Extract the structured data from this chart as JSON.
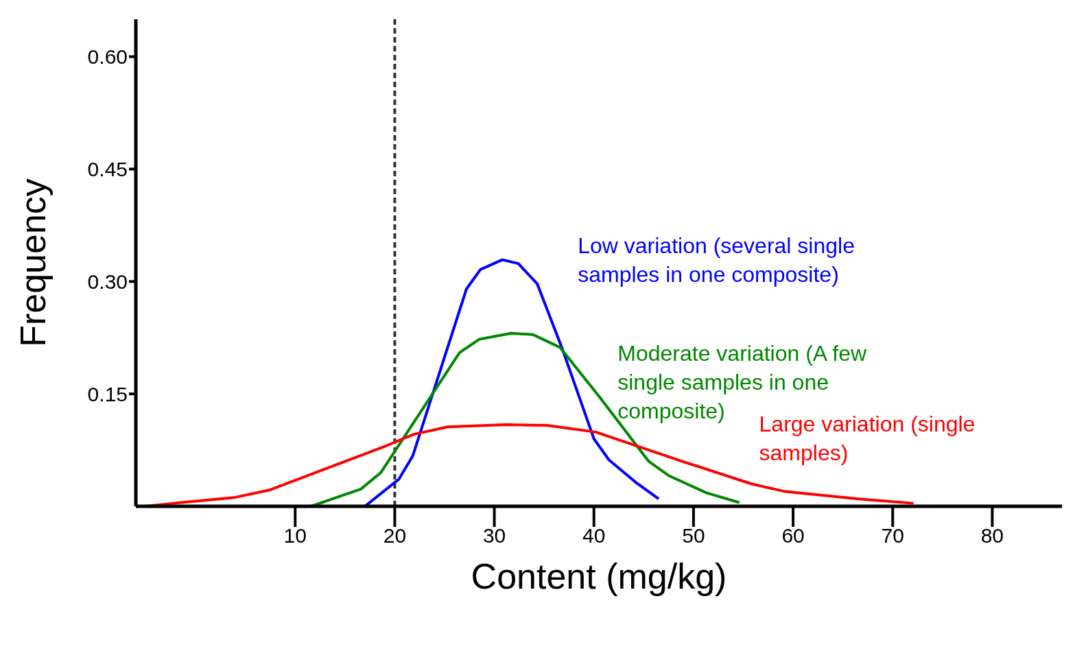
{
  "chart_data": {
    "type": "line",
    "xlabel": "Content (mg/kg)",
    "ylabel": "Frequency",
    "xlim": [
      -6,
      87
    ],
    "xticks": [
      10,
      20,
      30,
      40,
      50,
      60,
      70,
      80
    ],
    "ylim": [
      0,
      0.65
    ],
    "yticks": [
      {
        "value": 0.15,
        "label": "0.15"
      },
      {
        "value": 0.3,
        "label": "0.30"
      },
      {
        "value": 0.45,
        "label": "0.45"
      },
      {
        "value": 0.6,
        "label": "0.60"
      }
    ],
    "grid": false,
    "legend": false,
    "line_style": "solid",
    "ref_lines": [
      {
        "axis": "x",
        "value": 20,
        "color": "#333333",
        "line_style": "dashed"
      }
    ],
    "series": [
      {
        "name": "Low variation (several single samples in one composite)",
        "color": "#0000ff",
        "x": [
          17.0,
          20.4,
          21.8,
          27.2,
          28.6,
          30.8,
          32.4,
          34.3,
          36.8,
          40.0,
          41.5,
          44.2,
          46.5
        ],
        "values": [
          0,
          0.036,
          0.067,
          0.29,
          0.316,
          0.329,
          0.324,
          0.297,
          0.211,
          0.09,
          0.062,
          0.032,
          0.01
        ]
      },
      {
        "name": "Moderate variation (A few single samples in one composite)",
        "color": "#008800",
        "x": [
          11.6,
          16.6,
          18.6,
          26.5,
          28.5,
          31.7,
          33.9,
          36.6,
          40.5,
          45.5,
          47.5,
          51.3,
          54.6
        ],
        "values": [
          0,
          0.023,
          0.045,
          0.205,
          0.223,
          0.231,
          0.229,
          0.212,
          0.147,
          0.06,
          0.041,
          0.018,
          0.005
        ]
      },
      {
        "name": "Large variation (single samples)",
        "color": "#ff0000",
        "x": [
          -5.1,
          -0.7,
          4.0,
          7.5,
          19.2,
          21.9,
          25.3,
          31.1,
          35.3,
          40.2,
          49.1,
          55.8,
          59.1,
          66.4,
          72.1
        ],
        "values": [
          0,
          0.006,
          0.012,
          0.022,
          0.081,
          0.096,
          0.106,
          0.109,
          0.108,
          0.099,
          0.059,
          0.03,
          0.02,
          0.01,
          0.004
        ]
      }
    ]
  }
}
